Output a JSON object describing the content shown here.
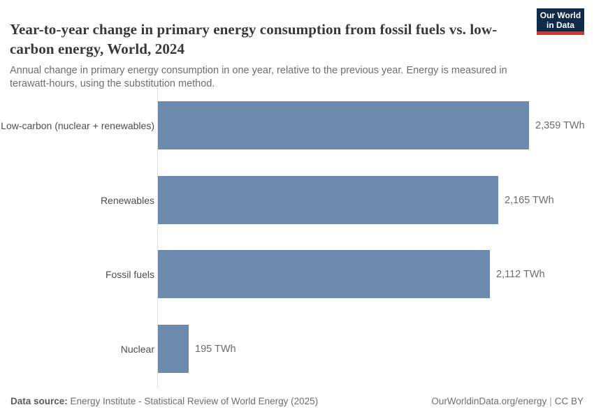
{
  "header": {
    "title": "Year-to-year change in primary energy consumption from fossil fuels vs. low-carbon energy, World, 2024",
    "subtitle": "Annual change in primary energy consumption in one year, relative to the previous year. Energy is measured in terawatt-hours, using the substitution method."
  },
  "logo": {
    "line1": "Our World",
    "line2": "in Data",
    "bg_color": "#102a4a",
    "accent_color": "#dc3128"
  },
  "chart_data": {
    "type": "bar",
    "orientation": "horizontal",
    "title": "Year-to-year change in primary energy consumption from fossil fuels vs. low-carbon energy, World, 2024",
    "categories": [
      "Low-carbon (nuclear + renewables)",
      "Renewables",
      "Fossil fuels",
      "Nuclear"
    ],
    "values": [
      2359,
      2165,
      2112,
      195
    ],
    "value_labels": [
      "2,359 TWh",
      "2,165 TWh",
      "2,112 TWh",
      "195 TWh"
    ],
    "unit": "TWh",
    "xlim": [
      0,
      2359
    ],
    "bar_color": "#6e89ae",
    "grid": false,
    "legend": "none"
  },
  "footer": {
    "datasource_label": "Data source:",
    "datasource_value": " Energy Institute - Statistical Review of World Energy (2025)",
    "link": "OurWorldinData.org/energy",
    "separator": "|",
    "license": "CC BY"
  }
}
